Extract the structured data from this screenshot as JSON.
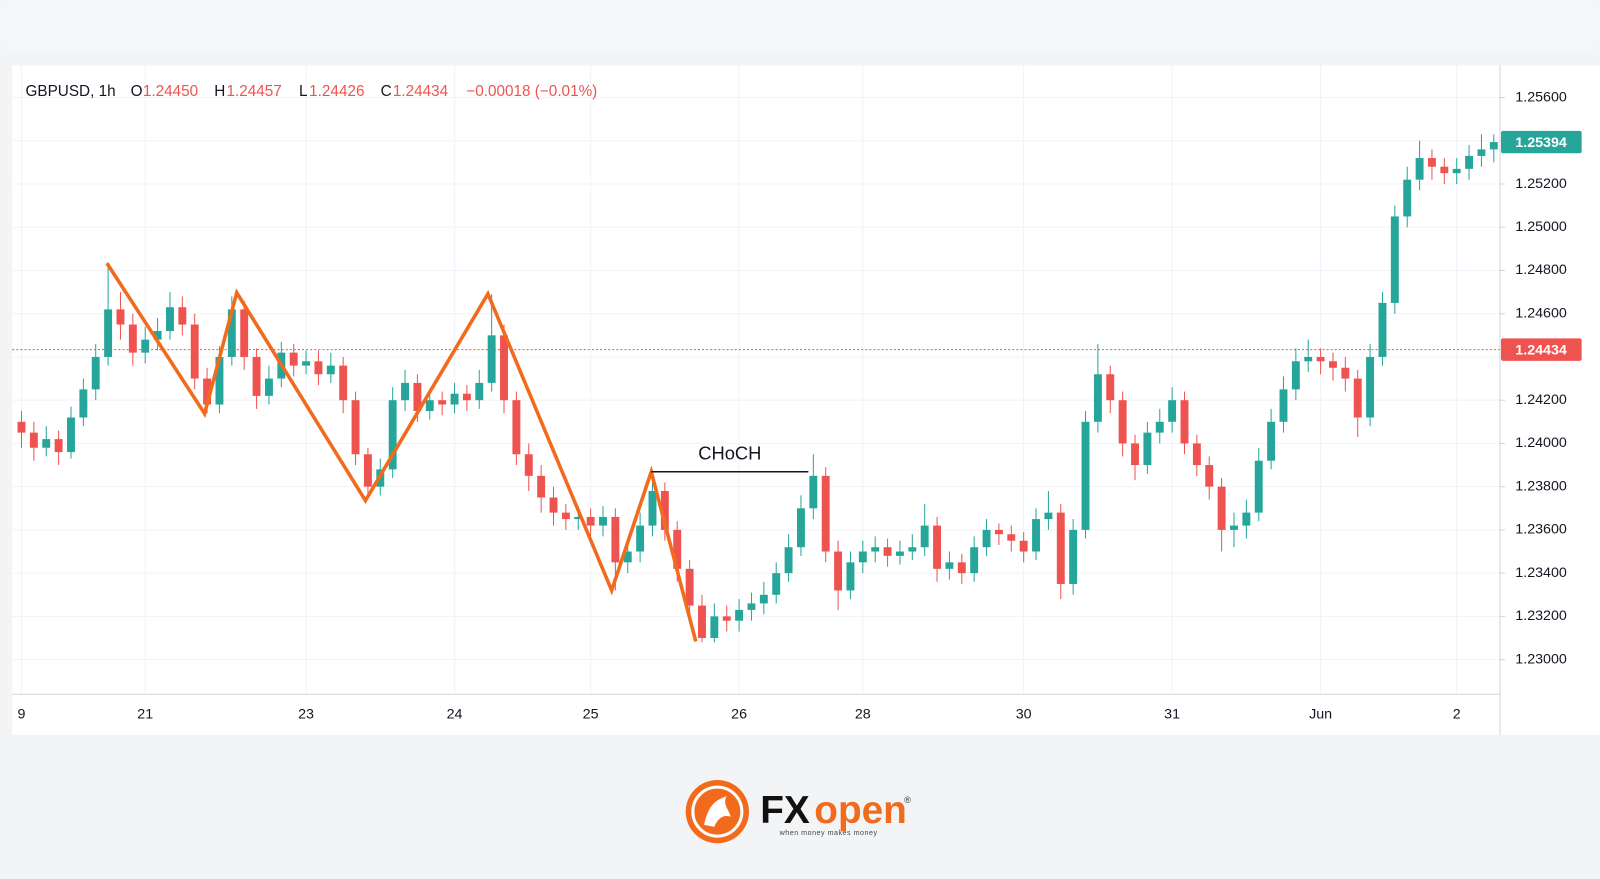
{
  "chart_data": {
    "type": "candlestick",
    "header": {
      "symbol": "GBPUSD, 1h",
      "o_label": "O",
      "o_value": "1.24450",
      "h_label": "H",
      "h_value": "1.24457",
      "l_label": "L",
      "l_value": "1.24426",
      "c_label": "C",
      "c_value": "1.24434",
      "change": "−0.00018 (−0.01%)"
    },
    "up_color": "#26a69a",
    "down_color": "#ef5350",
    "categories": [
      "9",
      null,
      null,
      null,
      null,
      null,
      null,
      null,
      null,
      null,
      "21",
      null,
      null,
      null,
      null,
      null,
      null,
      null,
      null,
      null,
      null,
      null,
      null,
      "23",
      null,
      null,
      null,
      null,
      null,
      null,
      null,
      null,
      null,
      null,
      null,
      "24",
      null,
      null,
      null,
      null,
      null,
      null,
      null,
      null,
      null,
      null,
      "25",
      null,
      null,
      null,
      null,
      null,
      null,
      null,
      null,
      null,
      null,
      null,
      "26",
      null,
      null,
      null,
      null,
      null,
      null,
      null,
      null,
      null,
      "28",
      null,
      null,
      null,
      null,
      null,
      null,
      null,
      null,
      null,
      null,
      null,
      null,
      "30",
      null,
      null,
      null,
      null,
      null,
      null,
      null,
      null,
      null,
      null,
      null,
      "31",
      null,
      null,
      null,
      null,
      null,
      null,
      null,
      null,
      null,
      null,
      null,
      "Jun",
      null,
      null,
      null,
      null,
      null,
      null,
      null,
      null,
      null,
      null,
      "2",
      null,
      null,
      null
    ],
    "open": [
      1.241,
      1.2405,
      1.2398,
      1.2402,
      1.2396,
      1.2412,
      1.2425,
      1.244,
      1.2462,
      1.2455,
      1.2442,
      1.2448,
      1.2452,
      1.2463,
      1.2455,
      1.243,
      1.2418,
      1.244,
      1.2462,
      1.244,
      1.2422,
      1.243,
      1.2442,
      1.2436,
      1.2438,
      1.2432,
      1.2436,
      1.242,
      1.2395,
      1.238,
      1.2388,
      1.242,
      1.2428,
      1.2415,
      1.242,
      1.2418,
      1.2423,
      1.242,
      1.2428,
      1.245,
      1.242,
      1.2395,
      1.2385,
      1.2375,
      1.2368,
      1.2365,
      1.2366,
      1.2362,
      1.2366,
      1.2345,
      1.235,
      1.2362,
      1.2378,
      1.236,
      1.2342,
      1.2325,
      1.231,
      1.232,
      1.2318,
      1.2323,
      1.2326,
      1.233,
      1.234,
      1.2352,
      1.237,
      1.2385,
      1.235,
      1.2332,
      1.2345,
      1.235,
      1.2352,
      1.2348,
      1.235,
      1.2352,
      1.2362,
      1.2342,
      1.2345,
      1.234,
      1.2352,
      1.236,
      1.2358,
      1.2355,
      1.235,
      1.2365,
      1.2368,
      1.2335,
      1.236,
      1.241,
      1.2432,
      1.242,
      1.24,
      1.239,
      1.2405,
      1.241,
      1.242,
      1.24,
      1.239,
      1.238,
      1.236,
      1.2362,
      1.2368,
      1.2392,
      1.241,
      1.2425,
      1.2438,
      1.244,
      1.2438,
      1.2435,
      1.243,
      1.2412,
      1.244,
      1.2465,
      1.2505,
      1.2522,
      1.2532,
      1.2528,
      1.2525,
      1.2527,
      1.2533,
      1.2536
    ],
    "high": [
      1.2415,
      1.241,
      1.2408,
      1.2406,
      1.2417,
      1.243,
      1.2446,
      1.2483,
      1.247,
      1.246,
      1.2454,
      1.2458,
      1.247,
      1.2468,
      1.246,
      1.2435,
      1.2445,
      1.2468,
      1.2466,
      1.2444,
      1.2436,
      1.2447,
      1.2446,
      1.2443,
      1.2443,
      1.2442,
      1.244,
      1.2424,
      1.2398,
      1.2393,
      1.2426,
      1.2434,
      1.2432,
      1.2425,
      1.2424,
      1.2428,
      1.2427,
      1.2434,
      1.2469,
      1.2455,
      1.2424,
      1.24,
      1.239,
      1.238,
      1.2372,
      1.2371,
      1.237,
      1.2371,
      1.237,
      1.2356,
      1.2368,
      1.2387,
      1.2382,
      1.2364,
      1.2346,
      1.233,
      1.2326,
      1.2325,
      1.2328,
      1.2331,
      1.2336,
      1.2345,
      1.2358,
      1.2376,
      1.2395,
      1.2389,
      1.2355,
      1.235,
      1.2355,
      1.2357,
      1.2356,
      1.2355,
      1.2358,
      1.2372,
      1.2366,
      1.235,
      1.2349,
      1.2357,
      1.2365,
      1.2363,
      1.2362,
      1.2359,
      1.237,
      1.2378,
      1.2372,
      1.2365,
      1.2415,
      1.2446,
      1.2436,
      1.2424,
      1.2404,
      1.241,
      1.2416,
      1.2426,
      1.2424,
      1.2404,
      1.2394,
      1.2384,
      1.2368,
      1.2374,
      1.2398,
      1.2416,
      1.2431,
      1.2444,
      1.2448,
      1.2444,
      1.2442,
      1.244,
      1.2434,
      1.2446,
      1.247,
      1.251,
      1.2528,
      1.254,
      1.2536,
      1.2532,
      1.2532,
      1.2538,
      1.2543,
      1.2543
    ],
    "low": [
      1.2398,
      1.2392,
      1.2394,
      1.239,
      1.2393,
      1.2408,
      1.242,
      1.2436,
      1.2448,
      1.2436,
      1.2437,
      1.2443,
      1.2448,
      1.245,
      1.2425,
      1.2414,
      1.2414,
      1.2436,
      1.2434,
      1.2416,
      1.2418,
      1.2426,
      1.2431,
      1.2432,
      1.2427,
      1.2428,
      1.2414,
      1.239,
      1.2374,
      1.2376,
      1.2384,
      1.2415,
      1.241,
      1.2411,
      1.2413,
      1.2414,
      1.2415,
      1.2416,
      1.2424,
      1.2414,
      1.239,
      1.2378,
      1.2368,
      1.2362,
      1.236,
      1.236,
      1.2357,
      1.2357,
      1.2332,
      1.234,
      1.2345,
      1.2357,
      1.2355,
      1.2336,
      1.232,
      1.2308,
      1.2308,
      1.2313,
      1.2313,
      1.2318,
      1.2321,
      1.2326,
      1.2336,
      1.2348,
      1.2365,
      1.2345,
      1.2323,
      1.2328,
      1.234,
      1.2345,
      1.2343,
      1.2344,
      1.2346,
      1.2348,
      1.2336,
      1.2337,
      1.2335,
      1.2336,
      1.2348,
      1.2353,
      1.235,
      1.2345,
      1.2346,
      1.236,
      1.2328,
      1.233,
      1.2356,
      1.2405,
      1.2414,
      1.2394,
      1.2383,
      1.2386,
      1.24,
      1.2405,
      1.2395,
      1.2385,
      1.2374,
      1.235,
      1.2352,
      1.2356,
      1.2364,
      1.2388,
      1.2405,
      1.242,
      1.2433,
      1.2432,
      1.2429,
      1.2424,
      1.2403,
      1.2408,
      1.2436,
      1.246,
      1.25,
      1.2517,
      1.2522,
      1.252,
      1.252,
      1.2522,
      1.2528,
      1.253
    ],
    "close": [
      1.2405,
      1.2398,
      1.2402,
      1.2396,
      1.2412,
      1.2425,
      1.244,
      1.2462,
      1.2455,
      1.2442,
      1.2448,
      1.2452,
      1.2463,
      1.2455,
      1.243,
      1.2418,
      1.244,
      1.2462,
      1.244,
      1.2422,
      1.243,
      1.2442,
      1.2436,
      1.2438,
      1.2432,
      1.2436,
      1.242,
      1.2395,
      1.238,
      1.2388,
      1.242,
      1.2428,
      1.2415,
      1.242,
      1.2418,
      1.2423,
      1.242,
      1.2428,
      1.245,
      1.242,
      1.2395,
      1.2385,
      1.2375,
      1.2368,
      1.2365,
      1.2366,
      1.2362,
      1.2366,
      1.2345,
      1.235,
      1.2362,
      1.2378,
      1.236,
      1.2342,
      1.2325,
      1.231,
      1.232,
      1.2318,
      1.2323,
      1.2326,
      1.233,
      1.234,
      1.2352,
      1.237,
      1.2385,
      1.235,
      1.2332,
      1.2345,
      1.235,
      1.2352,
      1.2348,
      1.235,
      1.2352,
      1.2362,
      1.2342,
      1.2345,
      1.234,
      1.2352,
      1.236,
      1.2358,
      1.2355,
      1.235,
      1.2365,
      1.2368,
      1.2335,
      1.236,
      1.241,
      1.2432,
      1.242,
      1.24,
      1.239,
      1.2405,
      1.241,
      1.242,
      1.24,
      1.239,
      1.238,
      1.236,
      1.2362,
      1.2368,
      1.2392,
      1.241,
      1.2425,
      1.2438,
      1.244,
      1.2438,
      1.2435,
      1.243,
      1.2412,
      1.244,
      1.2465,
      1.2505,
      1.2522,
      1.2532,
      1.2528,
      1.2525,
      1.2527,
      1.2533,
      1.2536,
      1.25394
    ],
    "ylim": [
      1.2284,
      1.2573
    ],
    "yticks": [
      {
        "value": 1.23,
        "label": "1.23000"
      },
      {
        "value": 1.232,
        "label": "1.23200"
      },
      {
        "value": 1.234,
        "label": "1.23400"
      },
      {
        "value": 1.236,
        "label": "1.23600"
      },
      {
        "value": 1.238,
        "label": "1.23800"
      },
      {
        "value": 1.24,
        "label": "1.24000"
      },
      {
        "value": 1.242,
        "label": "1.24200"
      },
      {
        "value": 1.244,
        "label": "1.24400"
      },
      {
        "value": 1.246,
        "label": "1.24600"
      },
      {
        "value": 1.248,
        "label": "1.24800"
      },
      {
        "value": 1.25,
        "label": "1.25000"
      },
      {
        "value": 1.252,
        "label": "1.25200"
      },
      {
        "value": 1.254,
        "label": "1.25400"
      },
      {
        "value": 1.256,
        "label": "1.25600"
      }
    ],
    "grid": true,
    "price_line": {
      "value": 1.24434,
      "color": "#ef5350"
    },
    "last_price": {
      "value": 1.25394,
      "color": "#26a69a"
    },
    "zigzag": {
      "color": "#f26b1d",
      "x": [
        6.9,
        14.8,
        17.4,
        27.8,
        37.7,
        47.7,
        50.9,
        54.5
      ],
      "y": [
        1.24834,
        1.24138,
        1.24697,
        1.23736,
        1.24692,
        1.2332,
        1.23869,
        1.23084
      ]
    },
    "choch": {
      "label": "CHoCH",
      "price": 1.23869,
      "x": [
        50.9,
        63.6
      ]
    }
  },
  "footer": {
    "brand_fx": "FX",
    "brand_open": "open",
    "registered": "®",
    "tagline": "when money makes money"
  }
}
